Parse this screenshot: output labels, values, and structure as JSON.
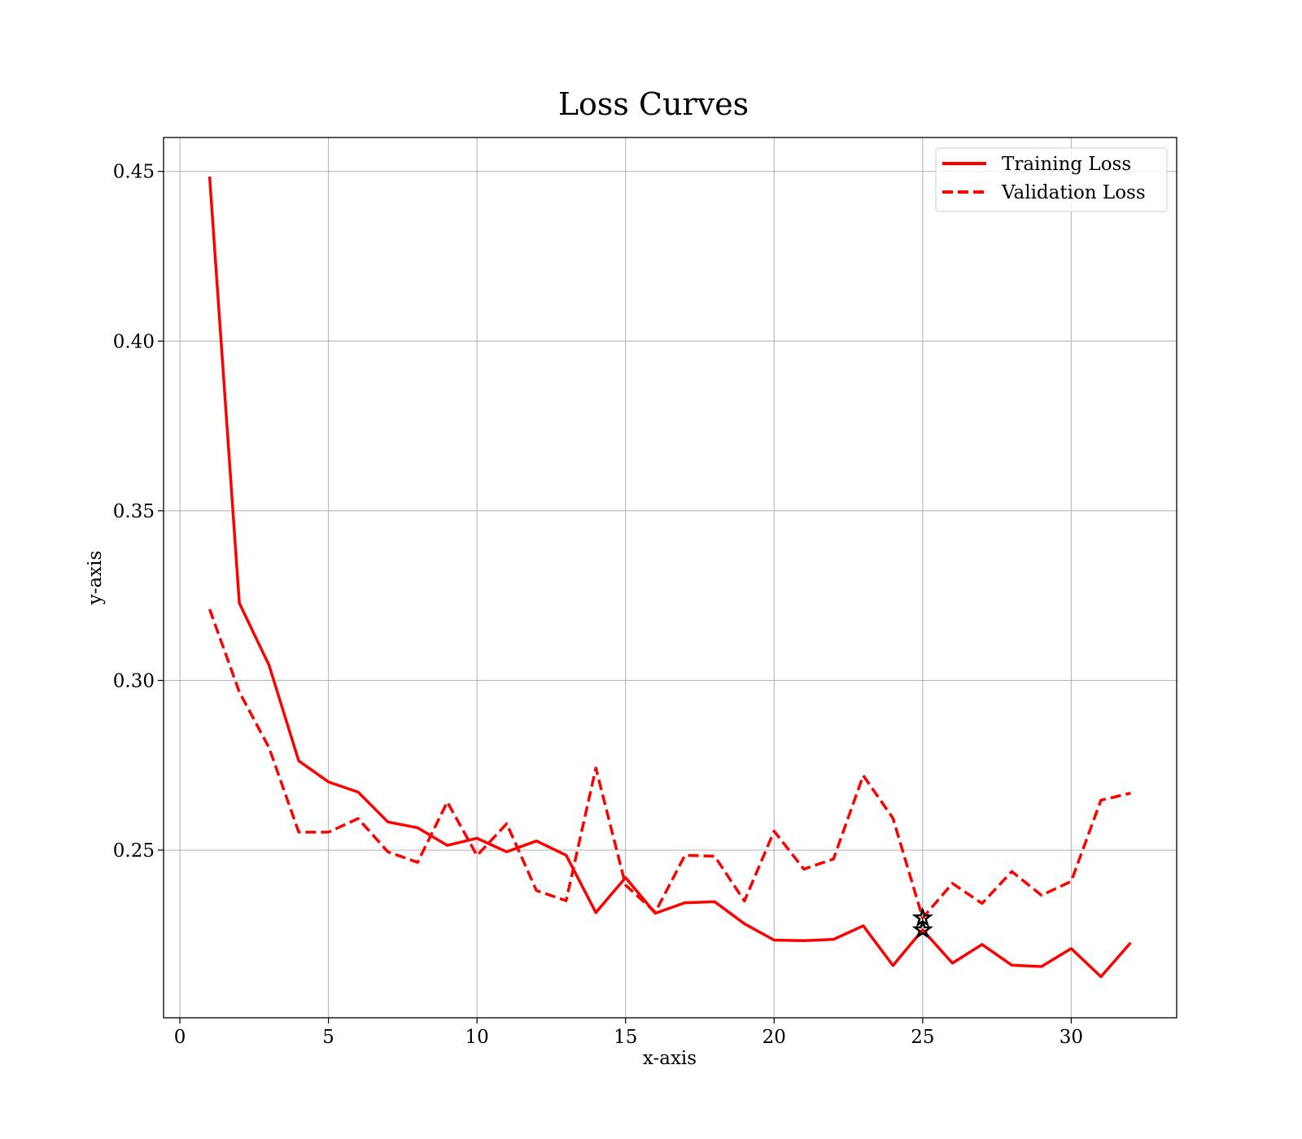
{
  "chart_data": {
    "type": "line",
    "title": "Loss Curves",
    "xlabel": "x-axis",
    "ylabel": "y-axis",
    "xlim": [
      -0.55,
      33.55
    ],
    "ylim": [
      0.2006,
      0.46
    ],
    "xticks": [
      0,
      5,
      10,
      15,
      20,
      25,
      30
    ],
    "xtick_labels": [
      "0",
      "5",
      "10",
      "15",
      "20",
      "25",
      "30"
    ],
    "yticks": [
      0.25,
      0.3,
      0.35,
      0.4,
      0.45
    ],
    "ytick_labels": [
      "0.25",
      "0.30",
      "0.35",
      "0.40",
      "0.45"
    ],
    "grid": true,
    "legend_position": "top-right",
    "x": [
      1,
      2,
      3,
      4,
      5,
      6,
      7,
      8,
      9,
      10,
      11,
      12,
      13,
      14,
      15,
      16,
      17,
      18,
      19,
      20,
      21,
      22,
      23,
      24,
      25,
      26,
      27,
      28,
      29,
      30,
      31,
      32
    ],
    "series": [
      {
        "name": "Training Loss",
        "color": "#ff0000",
        "linestyle": "solid",
        "values": [
          0.4485,
          0.3228,
          0.3045,
          0.2763,
          0.2701,
          0.2671,
          0.2583,
          0.2566,
          0.2514,
          0.2535,
          0.2495,
          0.2527,
          0.2485,
          0.2316,
          0.2419,
          0.2314,
          0.2345,
          0.2348,
          0.2283,
          0.2235,
          0.2233,
          0.2237,
          0.2277,
          0.216,
          0.2265,
          0.2167,
          0.2222,
          0.2161,
          0.2157,
          0.221,
          0.2127,
          0.2227
        ]
      },
      {
        "name": "Validation Loss",
        "color": "#ff0000",
        "linestyle": "dashed",
        "values": [
          0.321,
          0.2966,
          0.2802,
          0.2553,
          0.2553,
          0.2593,
          0.2495,
          0.2464,
          0.2642,
          0.2484,
          0.2578,
          0.2381,
          0.2351,
          0.2742,
          0.2397,
          0.2317,
          0.2485,
          0.2482,
          0.235,
          0.2556,
          0.2444,
          0.2474,
          0.272,
          0.2594,
          0.23,
          0.2402,
          0.2343,
          0.2437,
          0.2367,
          0.2408,
          0.2647,
          0.2668
        ]
      }
    ],
    "markers": [
      {
        "series": "Training Loss",
        "x": 25,
        "y": 0.2265,
        "symbol": "star",
        "color": "#000000"
      },
      {
        "series": "Validation Loss",
        "x": 25,
        "y": 0.23,
        "symbol": "star",
        "color": "#000000"
      }
    ]
  }
}
